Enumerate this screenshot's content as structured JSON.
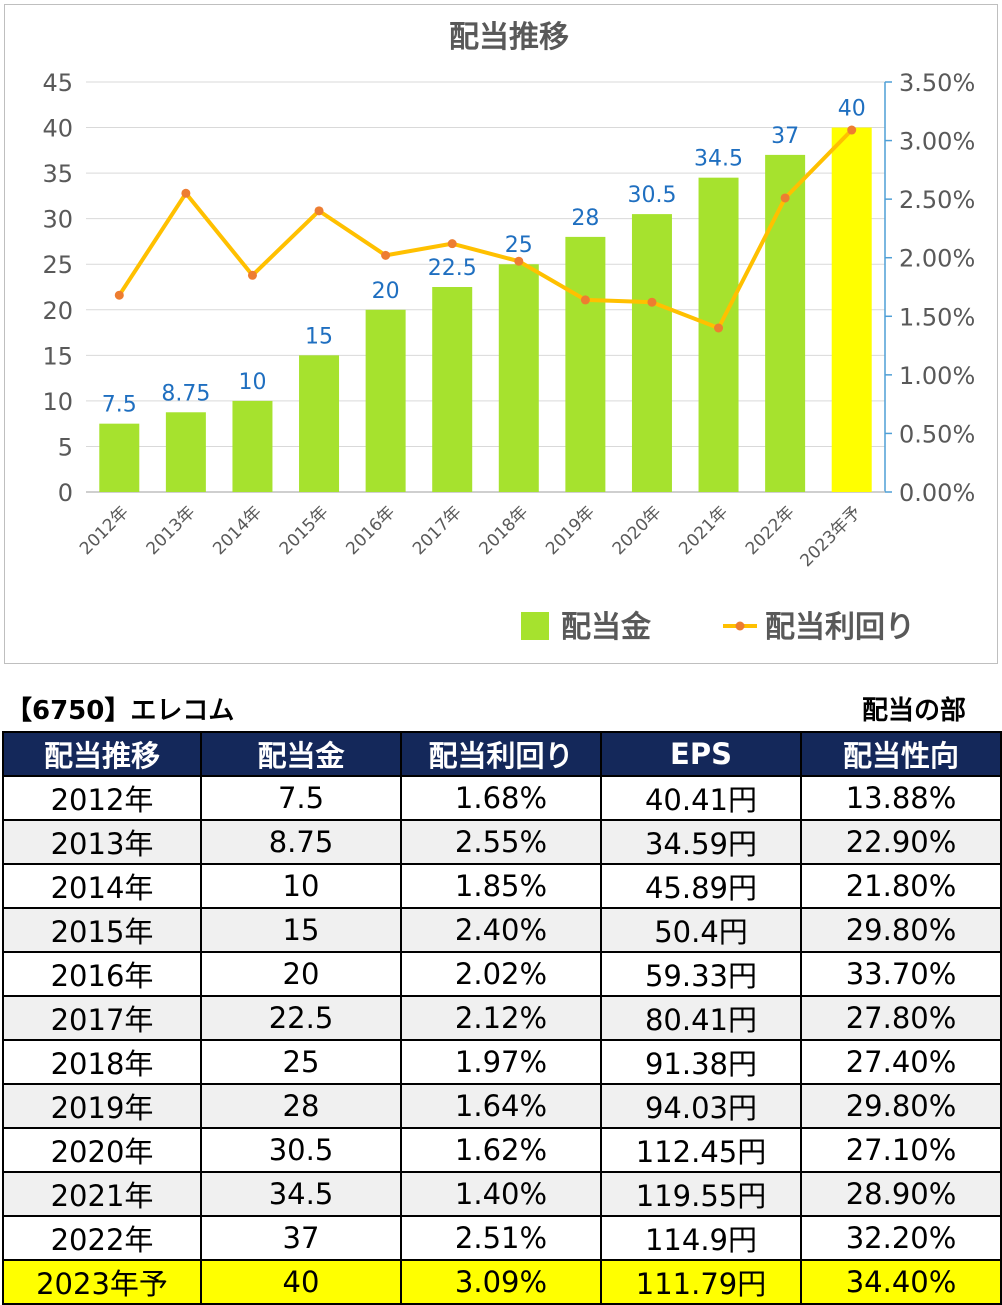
{
  "chart_data": {
    "type": "bar",
    "title": "配当推移",
    "categories": [
      "2012年",
      "2013年",
      "2014年",
      "2015年",
      "2016年",
      "2017年",
      "2018年",
      "2019年",
      "2020年",
      "2021年",
      "2022年",
      "2023年予"
    ],
    "series": [
      {
        "name": "配当金",
        "type": "bar",
        "axis": "left",
        "values": [
          7.5,
          8.75,
          10,
          15,
          20,
          22.5,
          25,
          28,
          30.5,
          34.5,
          37,
          40
        ],
        "labels": [
          "7.5",
          "8.75",
          "10",
          "15",
          "20",
          "22.5",
          "25",
          "28",
          "30.5",
          "34.5",
          "37",
          "40"
        ],
        "color": "#a6e22e",
        "highlight_last_color": "#ffff00"
      },
      {
        "name": "配当利回り",
        "type": "line",
        "axis": "right",
        "values": [
          1.68,
          2.55,
          1.85,
          2.4,
          2.02,
          2.12,
          1.97,
          1.64,
          1.62,
          1.4,
          2.51,
          3.09
        ],
        "color": "#ffc000",
        "marker_color": "#ed7d31"
      }
    ],
    "y_left": {
      "min": 0,
      "max": 45,
      "step": 5,
      "ticks": [
        "0",
        "5",
        "10",
        "15",
        "20",
        "25",
        "30",
        "35",
        "40",
        "45"
      ]
    },
    "y_right": {
      "min": 0,
      "max": 3.5,
      "step": 0.5,
      "ticks": [
        "0.00%",
        "0.50%",
        "1.00%",
        "1.50%",
        "2.00%",
        "2.50%",
        "3.00%",
        "3.50%"
      ]
    },
    "grid": true,
    "legend_position": "bottom-right"
  },
  "colors": {
    "bar": "#a6e22e",
    "bar_highlight": "#ffff00",
    "line": "#ffc000",
    "marker": "#ed7d31",
    "data_label": "#1f6fc0",
    "axis_text": "#595959",
    "right_axis": "#4f9fd6",
    "header_bg": "#14285a"
  },
  "caption": {
    "left": "【6750】エレコム",
    "right": "配当の部"
  },
  "table": {
    "headers": [
      "配当推移",
      "配当金",
      "配当利回り",
      "EPS",
      "配当性向"
    ],
    "rows": [
      [
        "2012年",
        "7.5",
        "1.68%",
        "40.41円",
        "13.88%"
      ],
      [
        "2013年",
        "8.75",
        "2.55%",
        "34.59円",
        "22.90%"
      ],
      [
        "2014年",
        "10",
        "1.85%",
        "45.89円",
        "21.80%"
      ],
      [
        "2015年",
        "15",
        "2.40%",
        "50.4円",
        "29.80%"
      ],
      [
        "2016年",
        "20",
        "2.02%",
        "59.33円",
        "33.70%"
      ],
      [
        "2017年",
        "22.5",
        "2.12%",
        "80.41円",
        "27.80%"
      ],
      [
        "2018年",
        "25",
        "1.97%",
        "91.38円",
        "27.40%"
      ],
      [
        "2019年",
        "28",
        "1.64%",
        "94.03円",
        "29.80%"
      ],
      [
        "2020年",
        "30.5",
        "1.62%",
        "112.45円",
        "27.10%"
      ],
      [
        "2021年",
        "34.5",
        "1.40%",
        "119.55円",
        "28.90%"
      ],
      [
        "2022年",
        "37",
        "2.51%",
        "114.9円",
        "32.20%"
      ],
      [
        "2023年予",
        "40",
        "3.09%",
        "111.79円",
        "34.40%"
      ]
    ],
    "highlight_last_row": true
  }
}
